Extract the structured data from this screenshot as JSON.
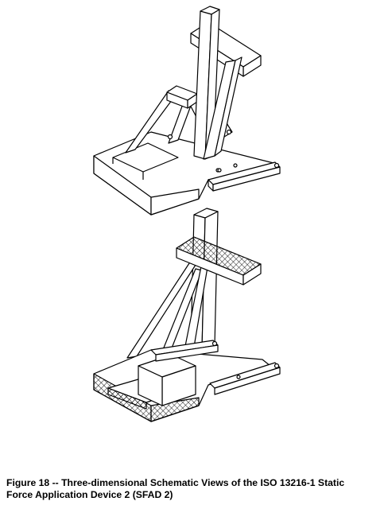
{
  "caption": {
    "line1": "Figure 18 -- Three-dimensional Schematic Views of the ISO 13216-1 Static",
    "line2": "Force Application Device 2 (SFAD 2)"
  },
  "colors": {
    "ink": "#000000",
    "paper": "#ffffff"
  }
}
